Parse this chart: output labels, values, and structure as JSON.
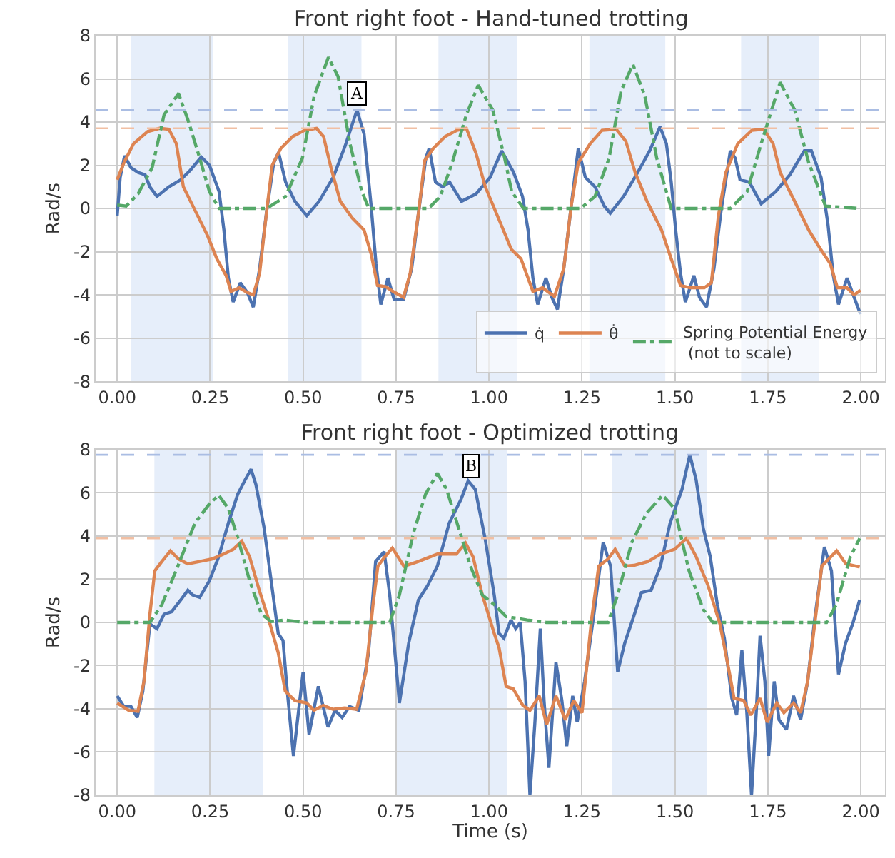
{
  "chart_data": [
    {
      "type": "line",
      "title": "Front right foot - Hand-tuned trotting",
      "ylabel": "Rad/s",
      "xlim": [
        -0.058,
        2.065
      ],
      "ylim": [
        -8,
        8
      ],
      "xticks": [
        {
          "value": 0,
          "label": "0.00"
        },
        {
          "value": 0.25,
          "label": "0.25"
        },
        {
          "value": 0.5,
          "label": "0.50"
        },
        {
          "value": 0.75,
          "label": "0.75"
        },
        {
          "value": 1,
          "label": "1.00"
        },
        {
          "value": 1.25,
          "label": "1.25"
        },
        {
          "value": 1.5,
          "label": "1.50"
        },
        {
          "value": 1.75,
          "label": "1.75"
        },
        {
          "value": 2,
          "label": "2.00"
        }
      ],
      "yticks": [
        -8,
        -6,
        -4,
        -2,
        0,
        2,
        4,
        6,
        8
      ],
      "grid": true,
      "legend": "bottom right",
      "series": [
        {
          "name": "q̇",
          "color": "#4c72b0",
          "x": [
            0,
            0.008,
            0.02,
            0.037,
            0.056,
            0.075,
            0.088,
            0.107,
            0.139,
            0.171,
            0.197,
            0.226,
            0.248,
            0.274,
            0.287,
            0.299,
            0.312,
            0.331,
            0.35,
            0.366,
            0.383,
            0.402,
            0.421,
            0.434,
            0.453,
            0.478,
            0.51,
            0.543,
            0.581,
            0.613,
            0.645,
            0.664,
            0.683,
            0.696,
            0.709,
            0.728,
            0.745,
            0.77,
            0.792,
            0.811,
            0.83,
            0.839,
            0.856,
            0.875,
            0.894,
            0.926,
            0.965,
            1.003,
            1.034,
            1.066,
            1.09,
            1.105,
            1.118,
            1.131,
            1.153,
            1.169,
            1.184,
            1.201,
            1.221,
            1.24,
            1.259,
            1.285,
            1.31,
            1.326,
            1.362,
            1.4,
            1.432,
            1.46,
            1.477,
            1.49,
            1.502,
            1.515,
            1.528,
            1.551,
            1.566,
            1.585,
            1.605,
            1.624,
            1.649,
            1.662,
            1.675,
            1.7,
            1.732,
            1.771,
            1.809,
            1.848,
            1.867,
            1.893,
            1.912,
            1.925,
            1.94,
            1.963,
            1.982,
            1.999
          ],
          "values": [
            -0.33,
            1.44,
            2.44,
            1.89,
            1.67,
            1.56,
            1.0,
            0.56,
            1.0,
            1.33,
            1.78,
            2.38,
            2.0,
            0.78,
            -1.0,
            -3.22,
            -4.33,
            -3.44,
            -3.89,
            -4.56,
            -2.78,
            -0.11,
            2.11,
            2.6,
            1.22,
            0.33,
            -0.33,
            0.33,
            1.44,
            2.89,
            4.56,
            3.44,
            0.11,
            -2.56,
            -4.44,
            -3.22,
            -4.22,
            -4.22,
            -2.78,
            -0.11,
            2.33,
            2.78,
            1.22,
            1.0,
            1.22,
            0.33,
            0.67,
            1.44,
            2.67,
            1.67,
            0.56,
            -1.0,
            -3.22,
            -4.44,
            -3.22,
            -4.11,
            -4.67,
            -2.78,
            0.11,
            2.78,
            1.44,
            1.0,
            0.11,
            -0.22,
            0.56,
            1.67,
            2.67,
            3.78,
            3.0,
            1.22,
            -1.0,
            -3.0,
            -4.33,
            -3.11,
            -4.11,
            -4.56,
            -2.78,
            -0.11,
            2.67,
            2.33,
            1.33,
            1.22,
            0.22,
            0.78,
            1.56,
            2.67,
            2.67,
            1.44,
            -0.78,
            -3.0,
            -4.44,
            -3.22,
            -4.11,
            -4.89
          ]
        },
        {
          "name": "θ̇",
          "color": "#dd8452",
          "x": [
            0,
            0.018,
            0.044,
            0.082,
            0.114,
            0.139,
            0.159,
            0.178,
            0.21,
            0.242,
            0.268,
            0.293,
            0.306,
            0.328,
            0.35,
            0.366,
            0.383,
            0.402,
            0.417,
            0.44,
            0.472,
            0.504,
            0.536,
            0.555,
            0.575,
            0.6,
            0.632,
            0.664,
            0.683,
            0.7,
            0.722,
            0.747,
            0.77,
            0.788,
            0.811,
            0.827,
            0.85,
            0.882,
            0.914,
            0.939,
            0.965,
            0.99,
            1.028,
            1.06,
            1.086,
            1.118,
            1.144,
            1.176,
            1.201,
            1.221,
            1.24,
            1.272,
            1.304,
            1.342,
            1.368,
            1.393,
            1.425,
            1.464,
            1.49,
            1.515,
            1.541,
            1.579,
            1.598,
            1.617,
            1.637,
            1.669,
            1.707,
            1.739,
            1.764,
            1.783,
            1.822,
            1.86,
            1.892,
            1.918,
            1.937,
            1.963,
            1.982,
            1.999
          ],
          "values": [
            1.33,
            2.11,
            3.0,
            3.56,
            3.71,
            3.67,
            3.0,
            1.0,
            -0.11,
            -1.22,
            -2.33,
            -3.11,
            -3.84,
            -3.67,
            -3.89,
            -4.0,
            -3.0,
            -0.11,
            2.0,
            2.78,
            3.33,
            3.62,
            3.71,
            3.33,
            1.89,
            0.33,
            -0.44,
            -1.0,
            -2.11,
            -3.56,
            -3.62,
            -3.89,
            -4.11,
            -3.0,
            -0.11,
            2.22,
            2.78,
            3.33,
            3.62,
            3.71,
            2.56,
            1.0,
            -0.56,
            -1.89,
            -2.33,
            -3.84,
            -3.67,
            -4.07,
            -2.78,
            0.11,
            2.11,
            3.0,
            3.62,
            3.67,
            3.11,
            1.67,
            0.33,
            -1.0,
            -2.33,
            -3.56,
            -3.67,
            -3.67,
            -3.44,
            -0.33,
            1.67,
            3.0,
            3.62,
            3.67,
            3.0,
            1.67,
            0.33,
            -1.0,
            -1.89,
            -2.56,
            -3.67,
            -3.67,
            -4.0,
            -3.78
          ]
        },
        {
          "name": "Spring Potential Energy\n (not to scale)",
          "color": "#55a868",
          "line_style": "dashdot",
          "x": [
            0,
            0.024,
            0.056,
            0.094,
            0.126,
            0.165,
            0.19,
            0.222,
            0.248,
            0.274,
            0.402,
            0.453,
            0.498,
            0.53,
            0.568,
            0.594,
            0.626,
            0.658,
            0.677,
            0.837,
            0.869,
            0.901,
            0.939,
            0.971,
            1.01,
            1.042,
            1.061,
            1.093,
            1.246,
            1.285,
            1.323,
            1.355,
            1.387,
            1.419,
            1.451,
            1.49,
            1.649,
            1.694,
            1.732,
            1.783,
            1.822,
            1.86,
            1.905,
            1.999
          ],
          "values": [
            0.16,
            0.11,
            0.67,
            1.89,
            4.33,
            5.33,
            4.11,
            2.33,
            0.78,
            0,
            0,
            0.56,
            2.33,
            5.22,
            7.0,
            6.11,
            3.0,
            0.78,
            0,
            0,
            0.56,
            2.11,
            4.33,
            5.71,
            4.56,
            2.33,
            0.78,
            0,
            0,
            0.56,
            2.33,
            5.44,
            6.67,
            5.22,
            2.33,
            0,
            0,
            0.78,
            3.0,
            5.84,
            4.56,
            2.11,
            0.11,
            0
          ]
        }
      ],
      "bands": [
        {
          "axis": "x",
          "from": 0.038,
          "to": 0.257,
          "color": "#e6eefa"
        },
        {
          "axis": "x",
          "from": 0.46,
          "to": 0.657,
          "color": "#e6eefa"
        },
        {
          "axis": "x",
          "from": 0.864,
          "to": 1.075,
          "color": "#e6eefa"
        },
        {
          "axis": "x",
          "from": 1.27,
          "to": 1.474,
          "color": "#e6eefa"
        },
        {
          "axis": "x",
          "from": 1.678,
          "to": 1.888,
          "color": "#e6eefa"
        }
      ],
      "ref_lines": [
        {
          "axis": "y",
          "value": 4.55,
          "color": "#aabde3",
          "line_style": "dashed"
        },
        {
          "axis": "y",
          "value": 3.71,
          "color": "#f1bfa3",
          "line_style": "dashed"
        }
      ],
      "annotations": [
        {
          "text": "A",
          "x": 0.645,
          "y": 5.33
        }
      ]
    },
    {
      "type": "line",
      "title": "Front right foot - Optimized trotting",
      "xlabel": "Time (s)",
      "ylabel": "Rad/s",
      "xlim": [
        -0.058,
        2.065
      ],
      "ylim": [
        -8,
        8
      ],
      "xticks": [
        {
          "value": 0,
          "label": "0.00"
        },
        {
          "value": 0.25,
          "label": "0.25"
        },
        {
          "value": 0.5,
          "label": "0.50"
        },
        {
          "value": 0.75,
          "label": "0.75"
        },
        {
          "value": 1,
          "label": "1.00"
        },
        {
          "value": 1.25,
          "label": "1.25"
        },
        {
          "value": 1.5,
          "label": "1.50"
        },
        {
          "value": 1.75,
          "label": "1.75"
        },
        {
          "value": 2,
          "label": "2.00"
        }
      ],
      "yticks": [
        -8,
        -6,
        -4,
        -2,
        0,
        2,
        4,
        6,
        8
      ],
      "grid": true,
      "series": [
        {
          "color": "#4c72b0",
          "x": [
            0,
            0.018,
            0.037,
            0.054,
            0.069,
            0.088,
            0.107,
            0.126,
            0.146,
            0.171,
            0.19,
            0.203,
            0.222,
            0.248,
            0.273,
            0.299,
            0.324,
            0.344,
            0.36,
            0.373,
            0.395,
            0.414,
            0.433,
            0.446,
            0.455,
            0.474,
            0.488,
            0.5,
            0.516,
            0.541,
            0.567,
            0.586,
            0.605,
            0.625,
            0.65,
            0.676,
            0.695,
            0.718,
            0.733,
            0.759,
            0.784,
            0.81,
            0.835,
            0.861,
            0.893,
            0.925,
            0.944,
            0.963,
            0.989,
            1.014,
            1.027,
            1.04,
            1.059,
            1.072,
            1.084,
            1.097,
            1.11,
            1.123,
            1.138,
            1.148,
            1.161,
            1.18,
            1.196,
            1.209,
            1.225,
            1.237,
            1.257,
            1.282,
            1.307,
            1.327,
            1.346,
            1.365,
            1.391,
            1.41,
            1.436,
            1.461,
            1.487,
            1.519,
            1.54,
            1.557,
            1.576,
            1.595,
            1.614,
            1.633,
            1.653,
            1.666,
            1.68,
            1.693,
            1.706,
            1.719,
            1.729,
            1.742,
            1.752,
            1.767,
            1.78,
            1.8,
            1.819,
            1.838,
            1.857,
            1.876,
            1.902,
            1.921,
            1.94,
            1.959,
            1.978,
            1.997
          ],
          "values": [
            -3.4,
            -3.89,
            -3.89,
            -4.4,
            -3.18,
            -0.07,
            -0.29,
            0.38,
            0.49,
            1.04,
            1.49,
            1.27,
            1.16,
            1.93,
            3.04,
            4.6,
            5.93,
            6.6,
            7.09,
            6.38,
            4.38,
            1.93,
            -0.51,
            -0.84,
            -2.73,
            -6.18,
            -4.07,
            -2.29,
            -5.18,
            -2.96,
            -4.84,
            -4.07,
            -4.4,
            -3.89,
            -4.07,
            -1.4,
            2.82,
            3.27,
            1.27,
            -3.73,
            -0.96,
            1.04,
            1.71,
            2.6,
            4.6,
            5.71,
            6.56,
            6.16,
            3.93,
            1.27,
            -0.51,
            -0.73,
            0.11,
            -0.29,
            0.0,
            -2.73,
            -8.0,
            -4.73,
            -0.29,
            -3.62,
            -6.73,
            -1.84,
            -3.62,
            -5.73,
            -3.4,
            -4.62,
            -2.73,
            0.38,
            3.71,
            2.6,
            -2.29,
            -0.96,
            0.38,
            1.38,
            1.49,
            2.6,
            4.6,
            6.16,
            7.76,
            6.6,
            4.38,
            3.04,
            0.82,
            -0.73,
            -3.51,
            -4.29,
            -1.29,
            -4.07,
            -8.0,
            -4.07,
            -0.62,
            -2.73,
            -6.18,
            -2.73,
            -4.51,
            -4.96,
            -3.4,
            -4.51,
            -2.73,
            0.16,
            3.49,
            2.38,
            -2.4,
            -0.96,
            -0.07,
            1.04
          ]
        },
        {
          "color": "#dd8452",
          "x": [
            0,
            0.031,
            0.056,
            0.072,
            0.088,
            0.101,
            0.12,
            0.143,
            0.165,
            0.19,
            0.222,
            0.254,
            0.286,
            0.312,
            0.335,
            0.356,
            0.382,
            0.407,
            0.433,
            0.452,
            0.478,
            0.51,
            0.529,
            0.554,
            0.58,
            0.612,
            0.644,
            0.669,
            0.688,
            0.701,
            0.72,
            0.74,
            0.771,
            0.81,
            0.861,
            0.912,
            0.937,
            0.957,
            0.982,
            1.014,
            1.027,
            1.046,
            1.065,
            1.091,
            1.11,
            1.135,
            1.155,
            1.18,
            1.205,
            1.228,
            1.25,
            1.276,
            1.295,
            1.32,
            1.339,
            1.365,
            1.39,
            1.428,
            1.461,
            1.499,
            1.531,
            1.557,
            1.589,
            1.621,
            1.646,
            1.659,
            1.685,
            1.704,
            1.729,
            1.748,
            1.774,
            1.793,
            1.819,
            1.838,
            1.857,
            1.876,
            1.895,
            1.935,
            1.96,
            1.997
          ],
          "values": [
            -3.73,
            -4.07,
            -4.11,
            -2.73,
            0.38,
            2.38,
            2.82,
            3.31,
            2.93,
            2.71,
            2.82,
            2.93,
            3.16,
            3.38,
            3.76,
            3.04,
            1.49,
            0.16,
            -1.4,
            -3.18,
            -3.62,
            -3.73,
            -4.07,
            -3.84,
            -4.02,
            -3.96,
            -4.02,
            -2.29,
            0.82,
            2.6,
            3.04,
            3.44,
            2.6,
            2.82,
            3.16,
            3.16,
            3.67,
            3.04,
            1.27,
            -0.51,
            -1.18,
            -2.96,
            -3.07,
            -3.84,
            -4.07,
            -3.4,
            -4.73,
            -3.4,
            -4.51,
            -3.62,
            -4.18,
            0.16,
            2.6,
            2.93,
            3.38,
            2.6,
            2.64,
            2.82,
            3.16,
            3.38,
            3.89,
            3.04,
            1.71,
            -0.07,
            -2.29,
            -3.51,
            -3.62,
            -4.29,
            -3.51,
            -4.62,
            -3.73,
            -4.18,
            -3.73,
            -4.18,
            -2.73,
            -0.07,
            2.6,
            3.31,
            2.71,
            2.56
          ]
        },
        {
          "color": "#55a868",
          "line_style": "dashdot",
          "x": [
            0,
            0.088,
            0.12,
            0.158,
            0.209,
            0.248,
            0.273,
            0.299,
            0.324,
            0.356,
            0.388,
            0.414,
            0.452,
            0.503,
            0.733,
            0.759,
            0.797,
            0.829,
            0.861,
            0.886,
            0.918,
            0.95,
            0.982,
            1.014,
            1.046,
            1.103,
            1.154,
            1.32,
            1.346,
            1.384,
            1.423,
            1.467,
            1.499,
            1.538,
            1.576,
            1.602,
            1.717,
            1.908,
            1.934,
            1.972,
            1.997
          ],
          "values": [
            0,
            0,
            0.82,
            2.38,
            4.6,
            5.49,
            5.89,
            5.27,
            3.93,
            1.93,
            0.38,
            0.04,
            0.11,
            0,
            0,
            1.27,
            4.16,
            5.93,
            6.91,
            6.16,
            4.38,
            2.6,
            1.27,
            0.82,
            0.27,
            0.11,
            0,
            0,
            1.27,
            3.71,
            5.04,
            5.89,
            5.27,
            2.38,
            0.6,
            0,
            0,
            0,
            0.82,
            3.04,
            3.89
          ]
        }
      ],
      "bands": [
        {
          "axis": "x",
          "from": 0.1,
          "to": 0.393,
          "color": "#e6eefa"
        },
        {
          "axis": "x",
          "from": 0.75,
          "to": 1.048,
          "color": "#e6eefa"
        },
        {
          "axis": "x",
          "from": 1.33,
          "to": 1.586,
          "color": "#e6eefa"
        }
      ],
      "ref_lines": [
        {
          "axis": "y",
          "value": 7.76,
          "color": "#aabde3",
          "line_style": "dashed"
        },
        {
          "axis": "y",
          "value": 3.89,
          "color": "#f1bfa3",
          "line_style": "dashed"
        }
      ],
      "annotations": [
        {
          "text": "B",
          "x": 0.953,
          "y": 7.23
        }
      ]
    }
  ]
}
